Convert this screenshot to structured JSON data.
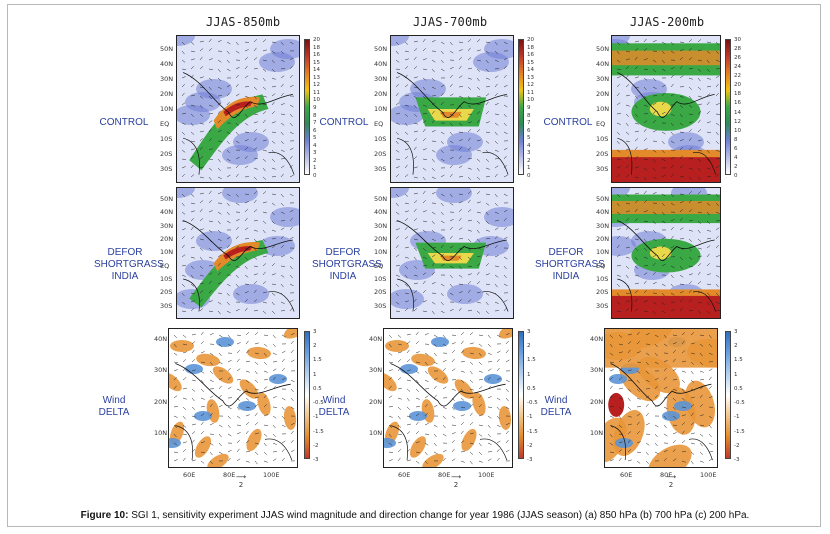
{
  "columns": [
    {
      "title": "JJAS-850mb"
    },
    {
      "title": "JJAS-700mb"
    },
    {
      "title": "JJAS-200mb"
    }
  ],
  "rows": [
    {
      "label": "CONTROL"
    },
    {
      "label": "DEFOR SHORTGRASS INDIA"
    },
    {
      "label": "Wind DELTA"
    }
  ],
  "lat_ticks_top": [
    "50N",
    "40N",
    "30N",
    "20N",
    "10N",
    "EQ",
    "10S",
    "20S",
    "30S"
  ],
  "lat_ticks_delta": [
    "40N",
    "30N",
    "20N",
    "10N"
  ],
  "lon_ticks_delta": [
    "60E",
    "80E",
    "100E"
  ],
  "ref_arrow_label": "2",
  "colorbars": {
    "850": [
      "20",
      "18",
      "16",
      "15",
      "14",
      "13",
      "12",
      "11",
      "10",
      "9",
      "8",
      "7",
      "6",
      "5",
      "4",
      "3",
      "2",
      "1",
      "0"
    ],
    "700": [
      "20",
      "18",
      "16",
      "15",
      "14",
      "13",
      "12",
      "11",
      "10",
      "9",
      "8",
      "7",
      "6",
      "5",
      "4",
      "3",
      "2",
      "1",
      "0"
    ],
    "200": [
      "30",
      "28",
      "26",
      "24",
      "22",
      "20",
      "18",
      "16",
      "14",
      "12",
      "10",
      "8",
      "6",
      "4",
      "2",
      "0"
    ],
    "delta_850": [
      "3",
      "2",
      "1.5",
      "1",
      "0.5",
      "-0.5",
      "-1",
      "-1.5",
      "-2",
      "-3"
    ],
    "delta_700": [
      "3",
      "2",
      "1.5",
      "1",
      "0.5",
      "-0.5",
      "-1",
      "-1.5",
      "-2",
      "-3"
    ],
    "delta_200": [
      "3",
      "2",
      "1.5",
      "1",
      "0.5",
      "-0.5",
      "-1",
      "-1.5",
      "-2",
      "-3"
    ]
  },
  "caption": {
    "bold": "Figure 10:",
    "text": " SGI 1, sensitivity experiment JJAS wind magnitude and direction change for year 1986 (JJAS season) (a) 850 hPa (b) 700 hPa (c) 200 hPa."
  },
  "colors": {
    "map_bg": "#dfe3f7",
    "weak": "#6f7fd6",
    "green": "#3aa845",
    "yellow": "#e8d84a",
    "orange": "#e38a2a",
    "red": "#b81f1f",
    "delta_pos": "#e8963a",
    "delta_neg": "#5b93d6"
  }
}
